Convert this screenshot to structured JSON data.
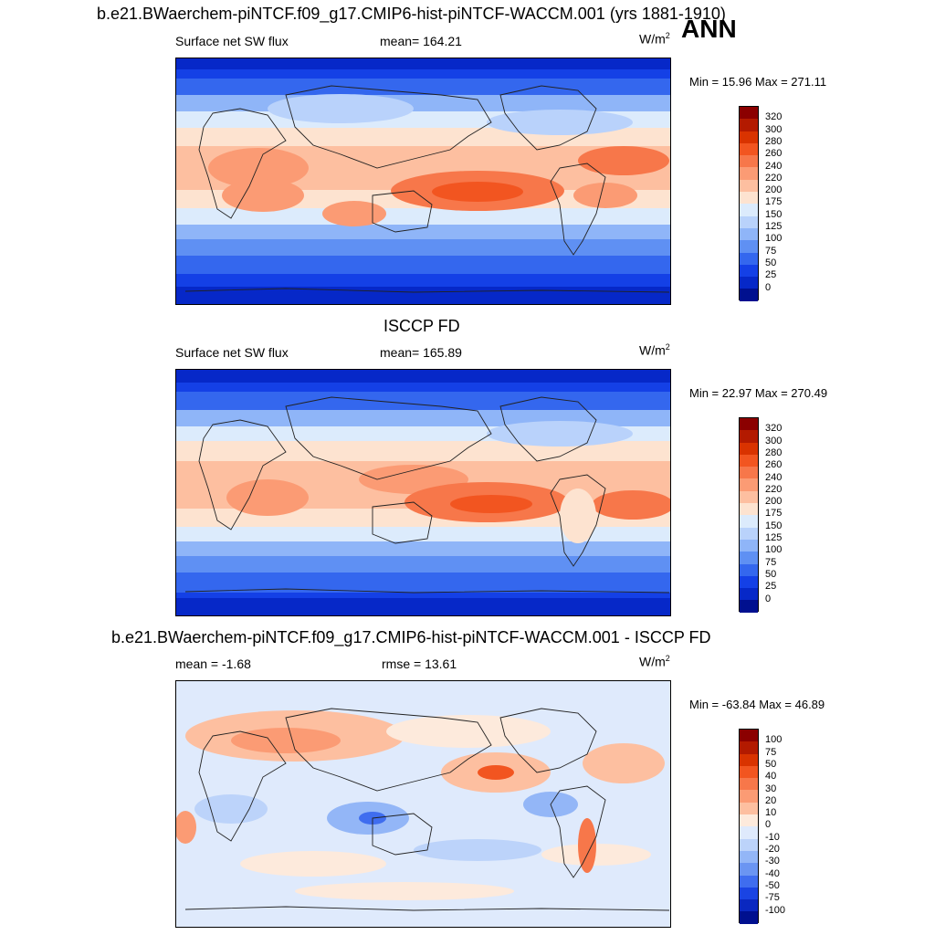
{
  "top_title": "b.e21.BWaerchem-piNTCF.f09_g17.CMIP6-hist-piNTCF-WACCM.001 (yrs 1881-1910)",
  "season": "ANN",
  "chart_data": [
    {
      "type": "heatmap",
      "variable": "Surface net SW flux",
      "stat_label": "mean= 164.21",
      "units_base": "W/m",
      "units_exp": "2",
      "min_max": "Min =  15.96 Max = 271.11",
      "colorbar_levels": [
        "320",
        "300",
        "280",
        "260",
        "240",
        "220",
        "200",
        "175",
        "150",
        "125",
        "100",
        "75",
        "50",
        "25",
        "0"
      ],
      "colorbar_colors": [
        "#8b0000",
        "#b31a00",
        "#d93300",
        "#f25520",
        "#f7774a",
        "#fb9b74",
        "#fdbfa0",
        "#fde3d0",
        "#dcebfc",
        "#b9d2fb",
        "#8fb5f8",
        "#5f90f3",
        "#3467ee",
        "#1440e6",
        "#0628c8",
        "#00108f"
      ]
    },
    {
      "type": "heatmap",
      "panel_title": "ISCCP FD",
      "variable": "Surface net SW flux",
      "stat_label": "mean= 165.89",
      "units_base": "W/m",
      "units_exp": "2",
      "min_max": "Min =  22.97 Max = 270.49",
      "colorbar_levels": [
        "320",
        "300",
        "280",
        "260",
        "240",
        "220",
        "200",
        "175",
        "150",
        "125",
        "100",
        "75",
        "50",
        "25",
        "0"
      ],
      "colorbar_colors": [
        "#8b0000",
        "#b31a00",
        "#d93300",
        "#f25520",
        "#f7774a",
        "#fb9b74",
        "#fdbfa0",
        "#fde3d0",
        "#dcebfc",
        "#b9d2fb",
        "#8fb5f8",
        "#5f90f3",
        "#3467ee",
        "#1440e6",
        "#0628c8",
        "#00108f"
      ]
    },
    {
      "type": "heatmap",
      "panel_title": "b.e21.BWaerchem-piNTCF.f09_g17.CMIP6-hist-piNTCF-WACCM.001 - ISCCP FD",
      "stat_label": "mean =  -1.68",
      "rmse_label": "rmse =  13.61",
      "units_base": "W/m",
      "units_exp": "2",
      "min_max": "Min = -63.84 Max =  46.89",
      "colorbar_levels": [
        "100",
        "75",
        "50",
        "40",
        "30",
        "20",
        "10",
        "0",
        "-10",
        "-20",
        "-30",
        "-40",
        "-50",
        "-75",
        "-100"
      ],
      "colorbar_colors": [
        "#8b0000",
        "#b31a00",
        "#d93300",
        "#f25520",
        "#f7774a",
        "#fb9b74",
        "#fdbfa0",
        "#fdeadc",
        "#dfeafc",
        "#bcd3fa",
        "#93b6f7",
        "#6b95f2",
        "#3f6def",
        "#1a44e3",
        "#0a28c0",
        "#00108f"
      ]
    }
  ]
}
